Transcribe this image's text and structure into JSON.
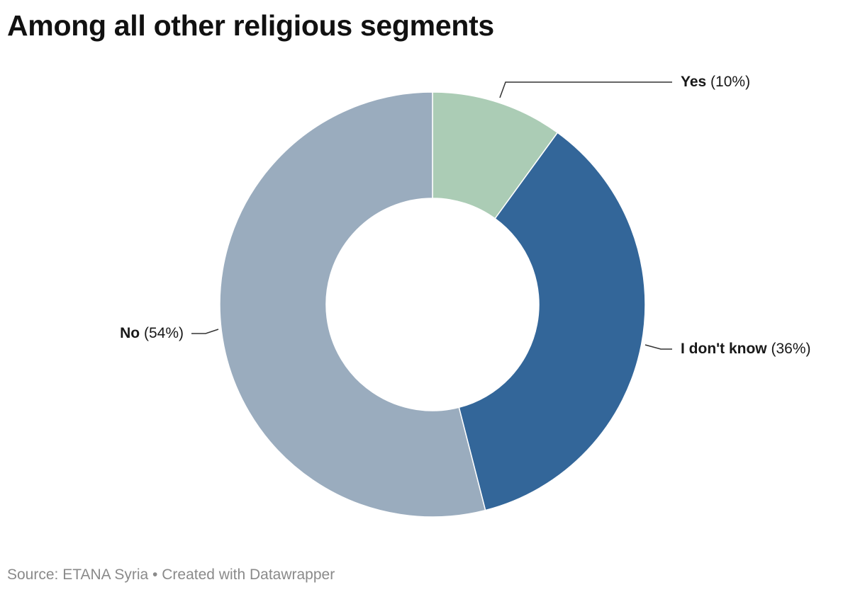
{
  "title": "Among all other religious segments",
  "footer": {
    "source_label": "Source:",
    "source_name": "ETANA Syria",
    "separator": "•",
    "credit": "Created with Datawrapper"
  },
  "chart_data": {
    "type": "pie",
    "variant": "donut",
    "start_angle_deg": 0,
    "direction": "clockwise",
    "slices": [
      {
        "label": "Yes",
        "value": 10,
        "display": "(10%)",
        "color": "#abccb5"
      },
      {
        "label": "I don't know",
        "value": 36,
        "display": "(36%)",
        "color": "#336699"
      },
      {
        "label": "No",
        "value": 54,
        "display": "(54%)",
        "color": "#9aacbe"
      }
    ],
    "separator_color": "#ffffff",
    "leader_line_color": "#333333",
    "legend": "none"
  }
}
